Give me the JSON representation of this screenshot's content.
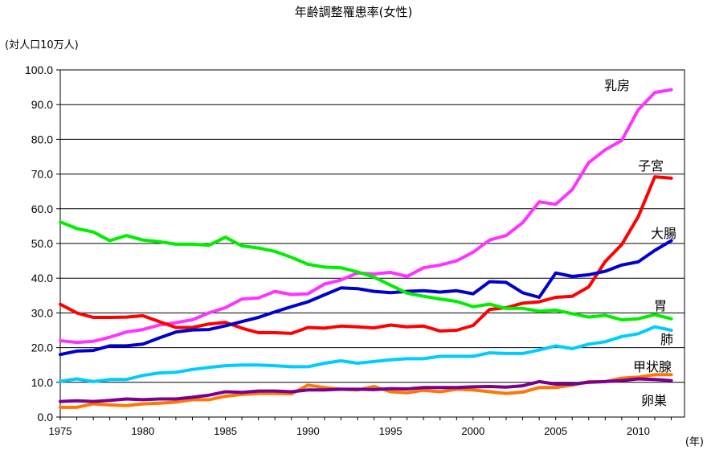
{
  "chart_data": {
    "type": "line",
    "title": "年齢調整罹患率(女性)",
    "ylabel": "(対人口10万人)",
    "xlabel": "(年)",
    "ylim": [
      0,
      100
    ],
    "xlim": [
      1975,
      2012
    ],
    "y_ticks": [
      0,
      10,
      20,
      30,
      40,
      50,
      60,
      70,
      80,
      90,
      100
    ],
    "y_tick_labels": [
      "0.0",
      "10.0",
      "20.0",
      "30.0",
      "40.0",
      "50.0",
      "60.0",
      "70.0",
      "80.0",
      "90.0",
      "100.0"
    ],
    "x_ticks": [
      1975,
      1980,
      1985,
      1990,
      1995,
      2000,
      2005,
      2010
    ],
    "x_tick_labels": [
      "1975",
      "1980",
      "1985",
      "1990",
      "1995",
      "2000",
      "2005",
      "2010"
    ],
    "grid": "horizontal",
    "x": [
      1975,
      1976,
      1977,
      1978,
      1979,
      1980,
      1981,
      1982,
      1983,
      1984,
      1985,
      1986,
      1987,
      1988,
      1989,
      1990,
      1991,
      1992,
      1993,
      1994,
      1995,
      1996,
      1997,
      1998,
      1999,
      2000,
      2001,
      2002,
      2003,
      2004,
      2005,
      2006,
      2007,
      2008,
      2009,
      2010,
      2011,
      2012
    ],
    "series": [
      {
        "name": "乳房",
        "color": "#ff33ff",
        "values": [
          22,
          21.5,
          21.8,
          23,
          24.5,
          25.2,
          26.5,
          27.2,
          28,
          30,
          31.5,
          34,
          34.3,
          36.2,
          35.3,
          35.5,
          38.3,
          39.5,
          41.5,
          41.2,
          41.7,
          40.5,
          43,
          43.8,
          45,
          47.5,
          51,
          52.3,
          56,
          62,
          61.3,
          65.5,
          73.3,
          77,
          79.7,
          88.5,
          93.5,
          94.3
        ]
      },
      {
        "name": "子宮",
        "color": "#ff0000",
        "values": [
          32.5,
          30,
          28.7,
          28.7,
          28.8,
          29.2,
          27.5,
          25.8,
          25.8,
          26.8,
          27.3,
          25.6,
          24.3,
          24.3,
          24.1,
          25.8,
          25.6,
          26.2,
          26,
          25.7,
          26.5,
          26,
          26.2,
          24.8,
          25,
          26.4,
          31,
          31.5,
          32.8,
          33.2,
          34.5,
          34.8,
          37.5,
          44.8,
          49.7,
          57.7,
          69.2,
          68.8
        ]
      },
      {
        "name": "大腸",
        "color": "#0000cc",
        "values": [
          18,
          19,
          19.2,
          20.5,
          20.5,
          21,
          22.8,
          24.5,
          25.1,
          25.2,
          26.3,
          27.5,
          28.7,
          30.3,
          31.8,
          33.2,
          35.2,
          37.2,
          37,
          36.2,
          35.8,
          36.2,
          36.4,
          36,
          36.4,
          35.5,
          39,
          38.8,
          35.8,
          34.5,
          41.5,
          40.5,
          41,
          42,
          43.8,
          44.7,
          48,
          50.8
        ]
      },
      {
        "name": "胃",
        "color": "#00ee00",
        "values": [
          56.2,
          54.3,
          53.3,
          50.8,
          52.3,
          51,
          50.5,
          49.8,
          49.8,
          49.5,
          51.8,
          49.3,
          48.7,
          47.7,
          46,
          44,
          43.2,
          43,
          41.8,
          40.3,
          38,
          35.7,
          34.8,
          34,
          33.3,
          31.8,
          32.5,
          31.3,
          31.3,
          30.5,
          30.8,
          29.8,
          28.8,
          29.3,
          28,
          28.3,
          29.5,
          28.3
        ]
      },
      {
        "name": "肺",
        "color": "#00ccff",
        "values": [
          10.3,
          11,
          10.2,
          10.8,
          10.8,
          12,
          12.7,
          12.9,
          13.7,
          14.3,
          14.8,
          15,
          15,
          14.8,
          14.5,
          14.5,
          15.5,
          16.2,
          15.5,
          16,
          16.5,
          16.8,
          16.8,
          17.5,
          17.5,
          17.5,
          18.5,
          18.3,
          18.3,
          19.3,
          20.5,
          19.7,
          21,
          21.7,
          23.2,
          24,
          26,
          25
        ]
      },
      {
        "name": "甲状腺",
        "color": "#ff7700",
        "values": [
          2.8,
          2.8,
          3.8,
          3.5,
          3.3,
          3.8,
          4,
          4.3,
          5,
          5,
          6,
          6.5,
          6.8,
          6.8,
          6.7,
          9.2,
          8.5,
          8,
          7.8,
          8.8,
          7.3,
          7,
          7.7,
          7.3,
          8,
          7.8,
          7.3,
          6.8,
          7.2,
          8.5,
          8.5,
          9.2,
          10.2,
          10.2,
          11.2,
          11.5,
          12.2,
          12.2
        ]
      },
      {
        "name": "卵巣",
        "color": "#7a0090",
        "values": [
          4.5,
          4.7,
          4.5,
          4.8,
          5.2,
          5,
          5.2,
          5.2,
          5.7,
          6.3,
          7.3,
          7.1,
          7.5,
          7.5,
          7.3,
          7.8,
          7.8,
          8,
          8,
          7.9,
          8.2,
          8.1,
          8.5,
          8.5,
          8.5,
          8.7,
          8.8,
          8.6,
          9,
          10.2,
          9.5,
          9.5,
          10,
          10.2,
          10.5,
          11,
          10.8,
          10.5
        ]
      }
    ]
  }
}
